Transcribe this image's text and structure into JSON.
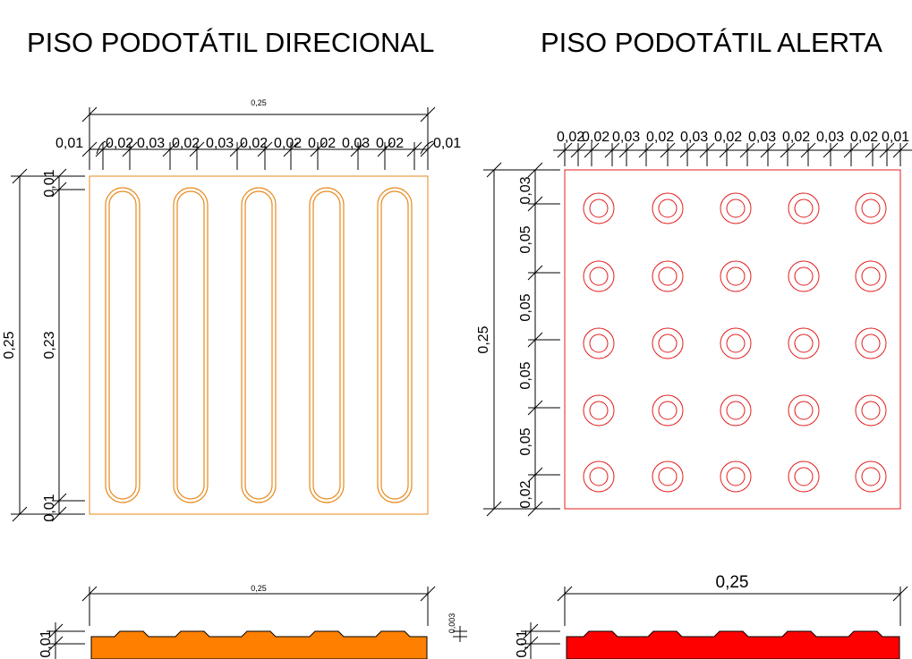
{
  "titles": {
    "left": "PISO PODOTÁTIL DIRECIONAL",
    "right": "PISO PODOTÁTIL ALERTA"
  },
  "colors": {
    "direcional": "#e8891a",
    "direcional_section": "#ff8000",
    "alerta": "#e31c1c",
    "alerta_section": "#ff0000",
    "dimension_lines": "#000000"
  },
  "direcional": {
    "top_total": "0,25",
    "top_segments": [
      "0,01",
      "0,02",
      "0,03",
      "0,02",
      "0,03",
      "0,02",
      "0,02",
      "0,02",
      "0,03",
      "0,02",
      "0,01"
    ],
    "left_total": "0,25",
    "left_segments": [
      "0,01",
      "0,23",
      "0,01"
    ],
    "bar_count": 5
  },
  "alerta": {
    "top_segments": [
      "0,02",
      "0,02",
      "0,03",
      "0,02",
      "0,03",
      "0,02",
      "0,03",
      "0,02",
      "0,03",
      "0,02",
      "0,01"
    ],
    "left_total": "0,25",
    "left_segments": [
      "0,03",
      "0,05",
      "0,05",
      "0,05",
      "0,05",
      "0,02"
    ],
    "dot_rows": 5,
    "dot_cols": 5
  },
  "section_direcional": {
    "width": "0,25",
    "left_height": "0,01",
    "right_height": "0,003"
  },
  "section_alerta": {
    "width": "0,25",
    "left_height": "0,01"
  }
}
